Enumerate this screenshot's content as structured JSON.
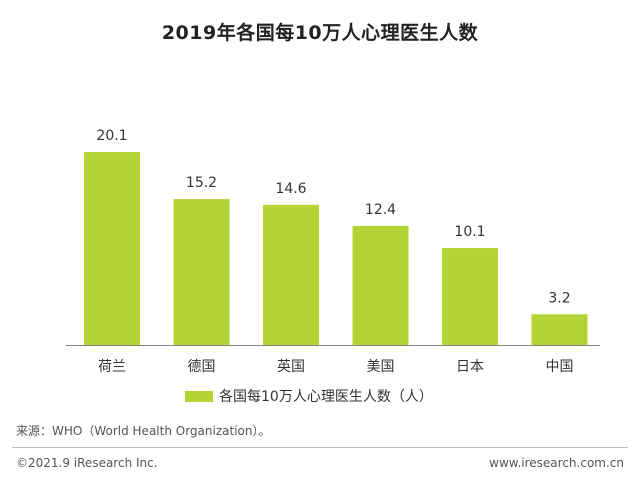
{
  "title": "2019年各国每10万人心理医生人数",
  "chart_data": {
    "type": "bar",
    "categories": [
      "荷兰",
      "德国",
      "英国",
      "美国",
      "日本",
      "中国"
    ],
    "series": [
      {
        "name": "各国每10万人心理医生人数（人）",
        "values": [
          20.1,
          15.2,
          14.6,
          12.4,
          10.1,
          3.2
        ]
      }
    ],
    "data_labels": [
      "20.1",
      "15.2",
      "14.6",
      "12.4",
      "10.1",
      "3.2"
    ],
    "ylim": [
      0,
      25
    ],
    "grid": false,
    "legend_position": "bottom",
    "bar_color": "#b5d334",
    "axis_color": "#888888"
  },
  "legend": {
    "label": "各国每10万人心理医生人数（人）"
  },
  "source": "来源：WHO（World Health Organization）。",
  "footer": {
    "copyright": "©2021.9 iResearch Inc.",
    "website": "www.iresearch.com.cn"
  }
}
